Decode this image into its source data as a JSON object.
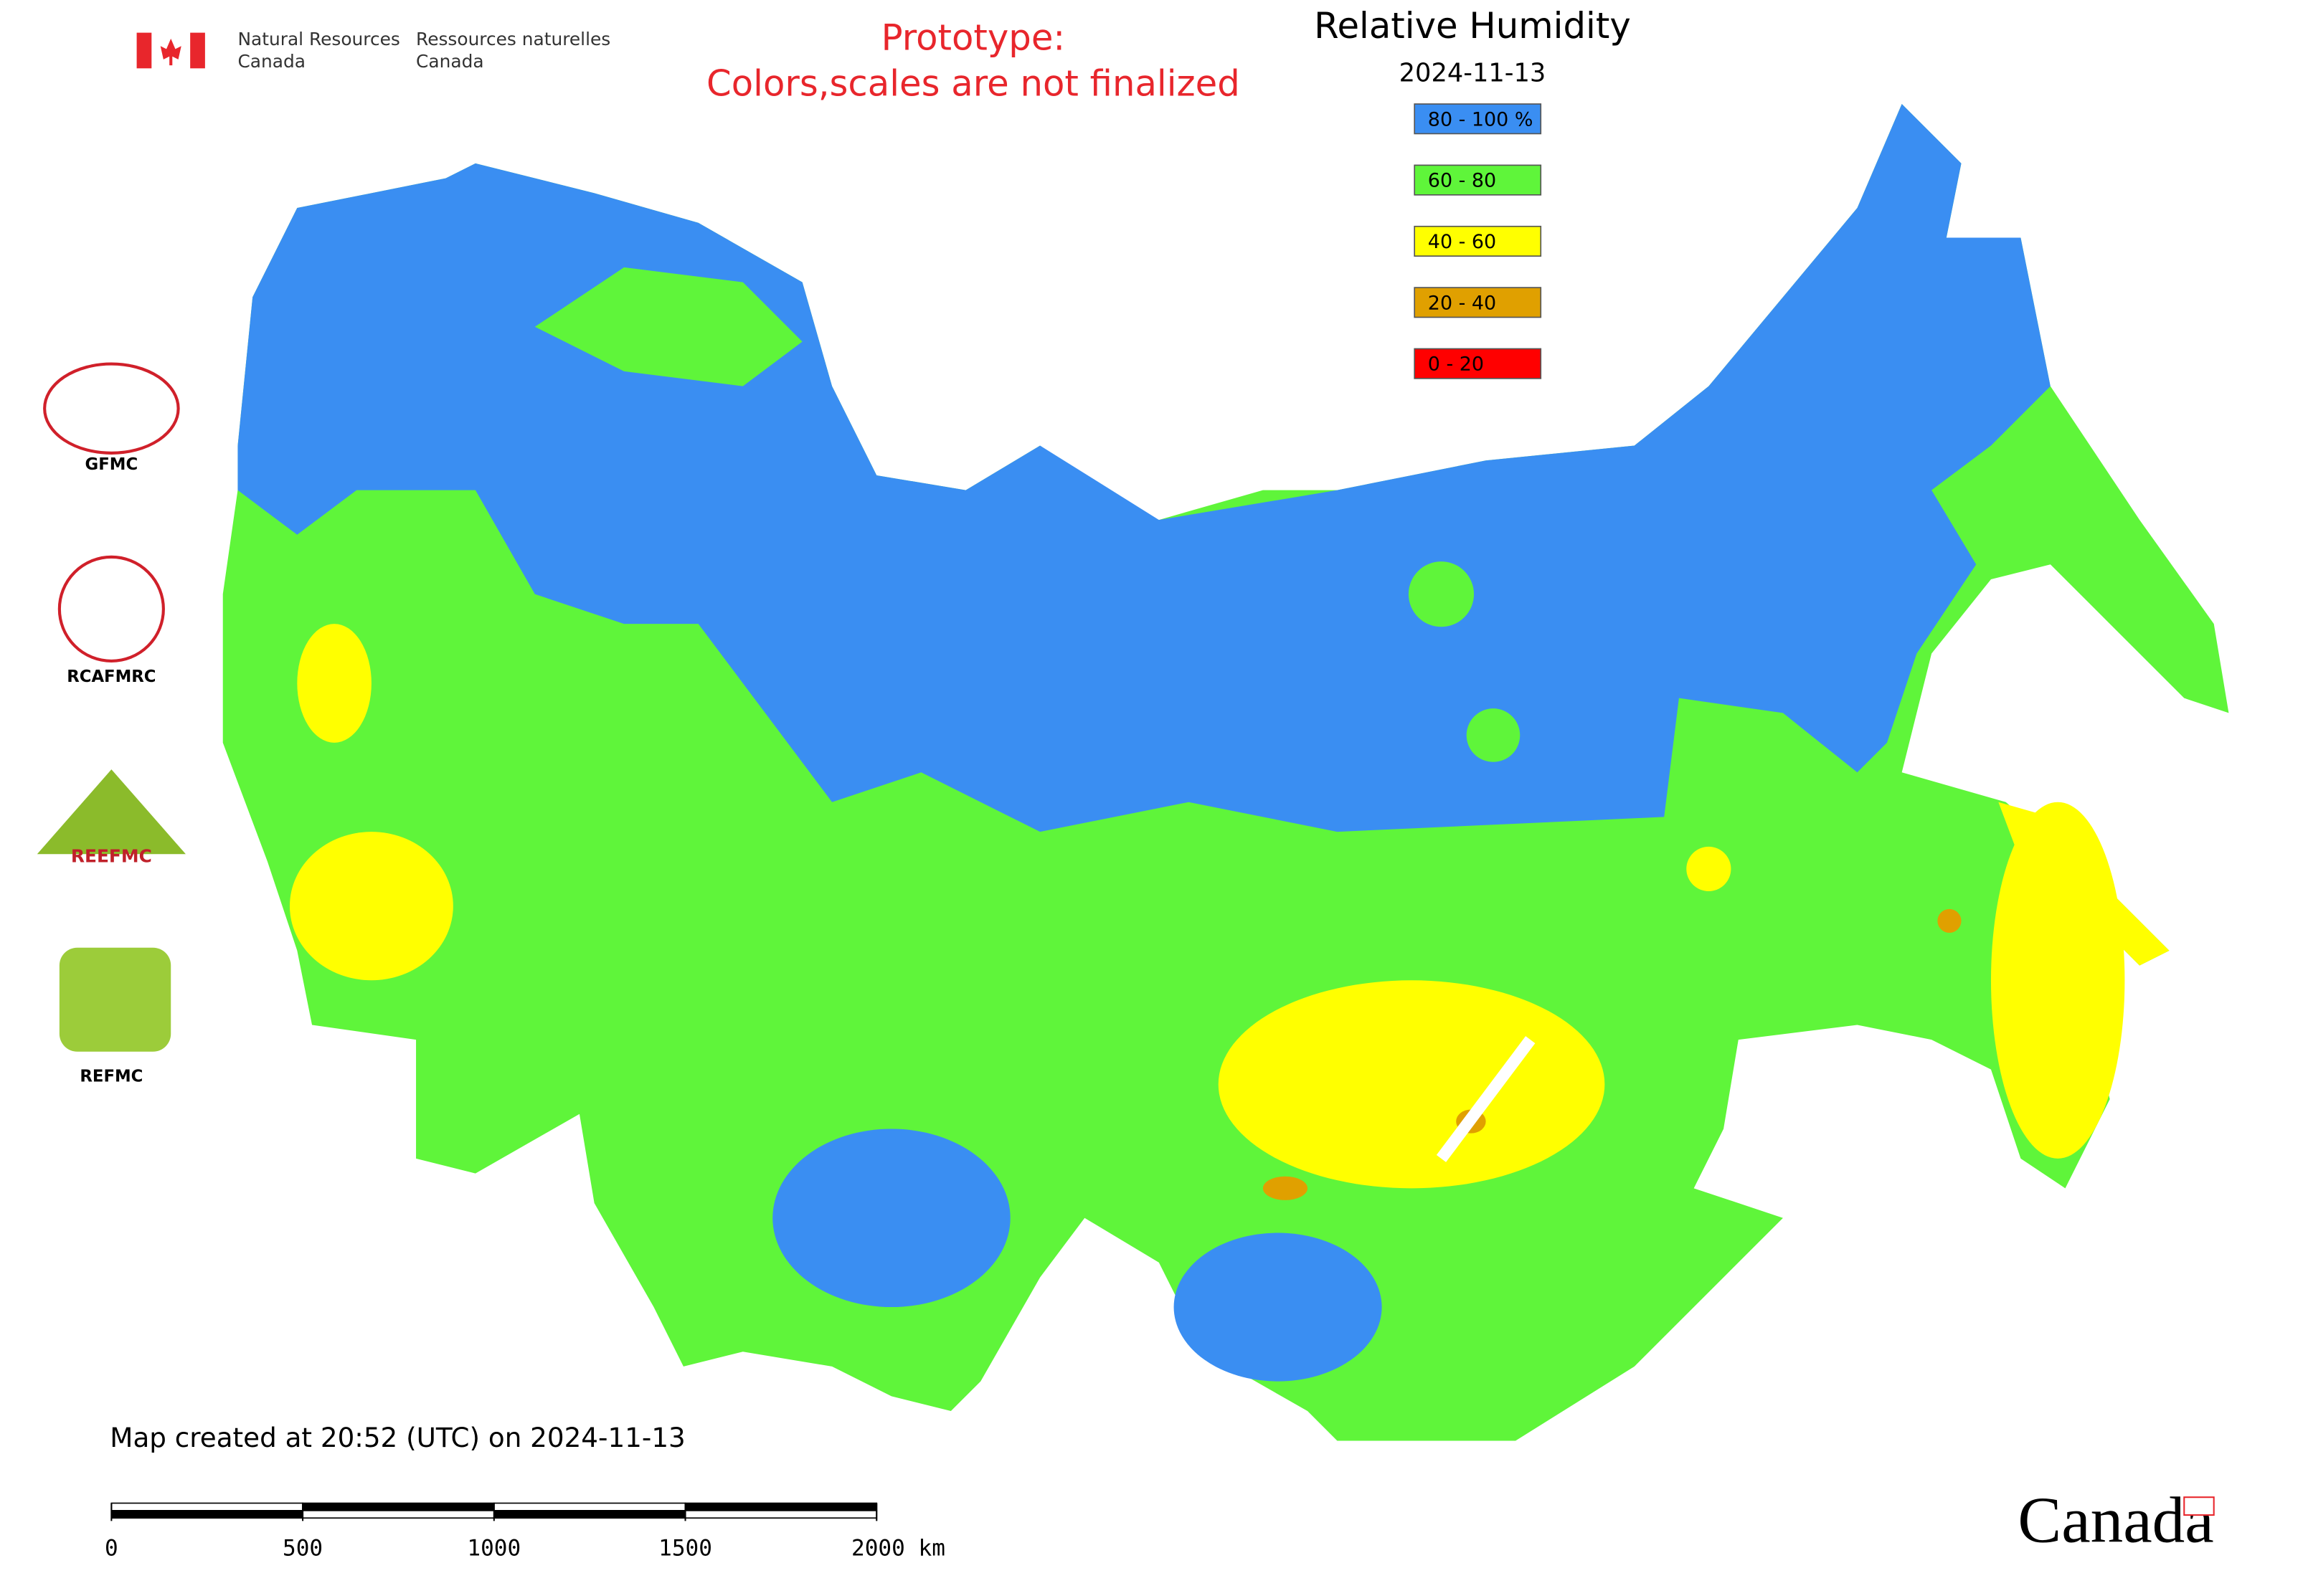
{
  "header": {
    "department_en": [
      "Natural Resources",
      "Canada"
    ],
    "department_fr": [
      "Ressources naturelles",
      "Canada"
    ],
    "notice": [
      "Prototype:",
      "Colors,scales are not finalized"
    ]
  },
  "map": {
    "title": "Relative Humidity",
    "date": "2024-11-13",
    "legend": [
      {
        "label": "80 - 100 %",
        "color": "#3a8ef2"
      },
      {
        "label": "60 - 80",
        "color": "#5ff53a"
      },
      {
        "label": "40 - 60",
        "color": "#ffff00"
      },
      {
        "label": "20 - 40",
        "color": "#e0a000"
      },
      {
        "label": "0 - 20",
        "color": "#ff0000"
      }
    ],
    "created": "Map created at 20:52 (UTC) on 2024-11-13",
    "scale_bar": {
      "ticks": [
        0,
        500,
        1000,
        1500,
        {
          "value": 2000,
          "label": "2000 km"
        }
      ]
    }
  },
  "logos": [
    {
      "caption": "GFMC"
    },
    {
      "caption": "RCAFMRC"
    },
    {
      "caption": "REEFMC"
    },
    {
      "caption": "REFMC"
    }
  ],
  "wordmark": "Canada"
}
